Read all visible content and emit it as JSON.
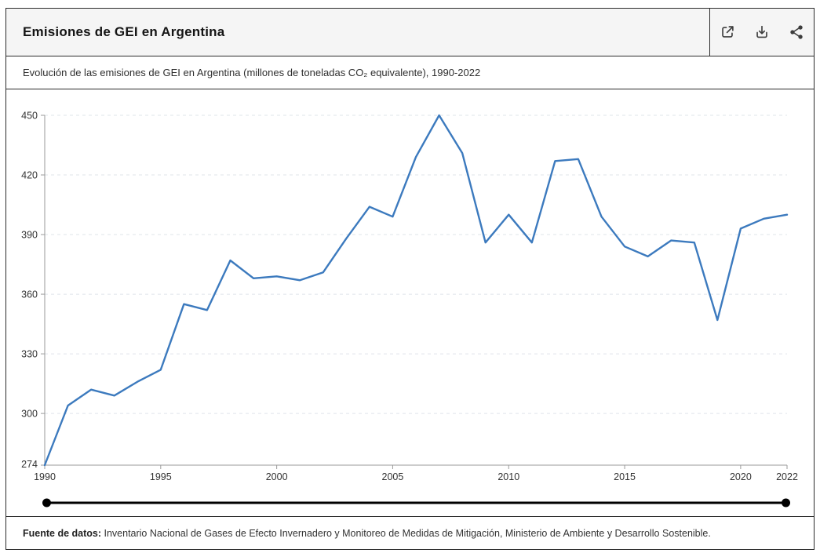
{
  "header": {
    "title": "Emisiones de GEI en Argentina",
    "toolbar": {
      "open_external": "open-external",
      "download": "download",
      "share": "share"
    }
  },
  "subtitle": "Evolución de las emisiones de GEI en Argentina (millones de toneladas CO₂ equivalente), 1990-2022",
  "footer": {
    "label": "Fuente de datos:",
    "text": " Inventario Nacional de Gases de Efecto Invernadero y Monitoreo de Medidas de Mitigación, Ministerio de Ambiente y Desarrollo Sostenible."
  },
  "colors": {
    "line": "#3c7abe",
    "grid": "#dfe4ea",
    "axis": "#9a9a9a",
    "tick_label": "#333333",
    "slider": "#000000",
    "icon": "#3d3d3d",
    "header_bg": "#f5f5f5",
    "border": "#2b2b2b"
  },
  "chart_data": {
    "type": "line",
    "title": "Emisiones de GEI en Argentina",
    "subtitle": "Evolución de las emisiones de GEI en Argentina (millones de toneladas CO₂ equivalente), 1990-2022",
    "xlabel": "",
    "ylabel": "millones de toneladas CO₂ equivalente",
    "grid": "dashed-horizontal",
    "legend": "none",
    "xlim": [
      1990,
      2022
    ],
    "ylim": [
      274,
      450
    ],
    "y_ticks": [
      450,
      420,
      390,
      360,
      330,
      300,
      274
    ],
    "x_ticks": [
      1990,
      1995,
      2000,
      2005,
      2010,
      2015,
      2020,
      2022
    ],
    "x": [
      1990,
      1991,
      1992,
      1993,
      1994,
      1995,
      1996,
      1997,
      1998,
      1999,
      2000,
      2001,
      2002,
      2003,
      2004,
      2005,
      2006,
      2007,
      2008,
      2009,
      2010,
      2011,
      2012,
      2013,
      2014,
      2015,
      2016,
      2017,
      2018,
      2019,
      2020,
      2021,
      2022
    ],
    "series": [
      {
        "name": "Emisiones de GEI",
        "values": [
          274,
          304,
          312,
          309,
          316,
          322,
          355,
          352,
          377,
          368,
          369,
          367,
          371,
          388,
          404,
          399,
          429,
          450,
          431,
          386,
          400,
          386,
          427,
          428,
          399,
          384,
          379,
          387,
          386,
          347,
          393,
          398,
          400
        ]
      }
    ],
    "range_slider": {
      "start": 1990,
      "end": 2022
    }
  }
}
